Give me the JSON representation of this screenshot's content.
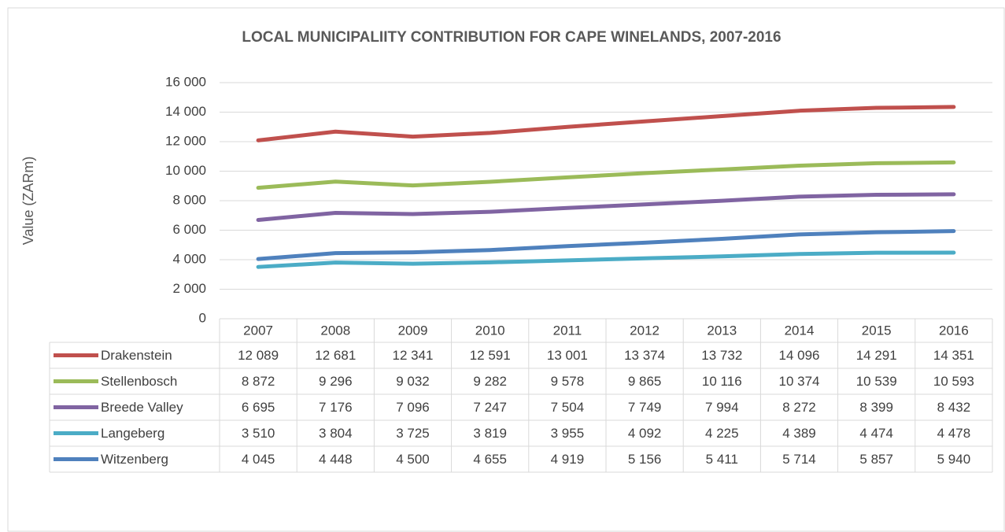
{
  "chart_data": {
    "type": "line",
    "title": "LOCAL MUNICIPALIITY CONTRIBUTION FOR CAPE WINELANDS, 2007-2016",
    "y_label": "Value (ZARm)",
    "categories": [
      "2007",
      "2008",
      "2009",
      "2010",
      "2011",
      "2012",
      "2013",
      "2014",
      "2015",
      "2016"
    ],
    "series": [
      {
        "name": "Drakenstein",
        "color": "#c0504d",
        "values": [
          12089,
          12681,
          12341,
          12591,
          13001,
          13374,
          13732,
          14096,
          14291,
          14351
        ],
        "value_labels": [
          "12 089",
          "12 681",
          "12 341",
          "12 591",
          "13 001",
          "13 374",
          "13 732",
          "14 096",
          "14 291",
          "14 351"
        ]
      },
      {
        "name": "Stellenbosch",
        "color": "#9bbb59",
        "values": [
          8872,
          9296,
          9032,
          9282,
          9578,
          9865,
          10116,
          10374,
          10539,
          10593
        ],
        "value_labels": [
          "8 872",
          "9 296",
          "9 032",
          "9 282",
          "9 578",
          "9 865",
          "10 116",
          "10 374",
          "10 539",
          "10 593"
        ]
      },
      {
        "name": "Breede Valley",
        "color": "#8064a2",
        "values": [
          6695,
          7176,
          7096,
          7247,
          7504,
          7749,
          7994,
          8272,
          8399,
          8432
        ],
        "value_labels": [
          "6 695",
          "7 176",
          "7 096",
          "7 247",
          "7 504",
          "7 749",
          "7 994",
          "8 272",
          "8 399",
          "8 432"
        ]
      },
      {
        "name": "Langeberg",
        "color": "#4bacc6",
        "values": [
          3510,
          3804,
          3725,
          3819,
          3955,
          4092,
          4225,
          4389,
          4474,
          4478
        ],
        "value_labels": [
          "3 510",
          "3 804",
          "3 725",
          "3 819",
          "3 955",
          "4 092",
          "4 225",
          "4 389",
          "4 474",
          "4 478"
        ]
      },
      {
        "name": "Witzenberg",
        "color": "#4f81bd",
        "values": [
          4045,
          4448,
          4500,
          4655,
          4919,
          5156,
          5411,
          5714,
          5857,
          5940
        ],
        "value_labels": [
          "4 045",
          "4 448",
          "4 500",
          "4 655",
          "4 919",
          "5 156",
          "5 411",
          "5 714",
          "5 857",
          "5 940"
        ]
      }
    ],
    "ylim": [
      0,
      16000
    ],
    "yticks": [
      0,
      {
        "value": 2000,
        "label": "2 000"
      },
      {
        "value": 4000,
        "label": "4 000"
      },
      {
        "value": 6000,
        "label": "6 000"
      },
      {
        "value": 8000,
        "label": "8 000"
      },
      {
        "value": 10000,
        "label": "10 000"
      },
      {
        "value": 12000,
        "label": "12 000"
      },
      {
        "value": 14000,
        "label": "14 000"
      },
      {
        "value": 16000,
        "label": "16 000"
      }
    ],
    "grid": true
  }
}
